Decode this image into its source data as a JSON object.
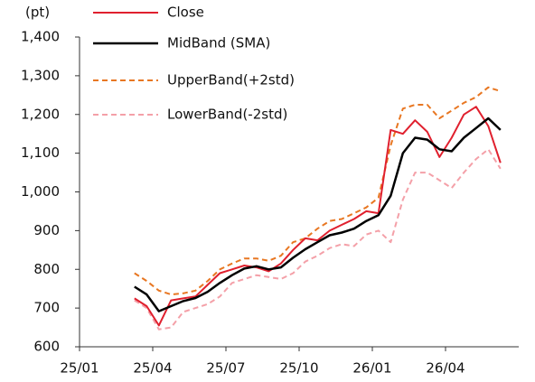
{
  "chart_data": {
    "type": "line",
    "y_label": "(pt)",
    "x": [
      2.25,
      2.75,
      3.25,
      3.75,
      4.25,
      4.75,
      5.25,
      5.75,
      6.25,
      6.75,
      7.25,
      7.75,
      8.25,
      8.75,
      9.25,
      9.75,
      10.25,
      10.75,
      11.25,
      11.75,
      12.25,
      12.75,
      13.25,
      13.75,
      14.25,
      14.75,
      15.25,
      15.75,
      16.25,
      16.75,
      17.25
    ],
    "series": [
      {
        "name": "Close",
        "color": "#e0202e",
        "dash": false,
        "width": 2,
        "values": [
          725,
          705,
          655,
          720,
          725,
          730,
          760,
          790,
          800,
          810,
          805,
          795,
          815,
          850,
          880,
          875,
          900,
          915,
          930,
          950,
          945,
          1160,
          1150,
          1185,
          1155,
          1090,
          1140,
          1200,
          1220,
          1170,
          1075
        ]
      },
      {
        "name": "MidBand (SMA)",
        "color": "#000000",
        "dash": false,
        "width": 2.5,
        "values": [
          755,
          735,
          692,
          705,
          718,
          726,
          742,
          765,
          785,
          802,
          808,
          800,
          805,
          830,
          852,
          870,
          888,
          895,
          905,
          925,
          940,
          990,
          1100,
          1140,
          1135,
          1110,
          1105,
          1140,
          1165,
          1190,
          1160
        ]
      },
      {
        "name": "UpperBand(+2std)",
        "color": "#e87722",
        "dash": true,
        "width": 2,
        "values": [
          790,
          770,
          745,
          735,
          738,
          745,
          770,
          800,
          815,
          828,
          828,
          822,
          835,
          870,
          880,
          905,
          925,
          930,
          945,
          960,
          985,
          1120,
          1215,
          1225,
          1225,
          1190,
          1210,
          1230,
          1245,
          1270,
          1260
        ]
      },
      {
        "name": "LowerBand(-2std)",
        "color": "#f4a0a8",
        "dash": true,
        "width": 2,
        "values": [
          720,
          700,
          645,
          650,
          690,
          700,
          710,
          730,
          765,
          775,
          785,
          780,
          775,
          790,
          820,
          835,
          855,
          865,
          860,
          890,
          900,
          870,
          980,
          1050,
          1050,
          1030,
          1010,
          1050,
          1085,
          1110,
          1060
        ]
      }
    ],
    "xlim": [
      0,
      18
    ],
    "xticks": [
      {
        "value": 0,
        "label": "25/01"
      },
      {
        "value": 3,
        "label": "25/04"
      },
      {
        "value": 6,
        "label": "25/07"
      },
      {
        "value": 9,
        "label": "25/10"
      },
      {
        "value": 12,
        "label": "26/01"
      },
      {
        "value": 15,
        "label": "26/04"
      }
    ],
    "ylim": [
      600,
      1400
    ],
    "yticks": [
      600,
      700,
      800,
      900,
      {
        "value": 1000,
        "label": "1,000"
      },
      {
        "value": 1100,
        "label": "1,100"
      },
      {
        "value": 1200,
        "label": "1,200"
      },
      {
        "value": 1300,
        "label": "1,300"
      },
      {
        "value": 1400,
        "label": "1,400"
      }
    ],
    "legend": "top-left"
  }
}
